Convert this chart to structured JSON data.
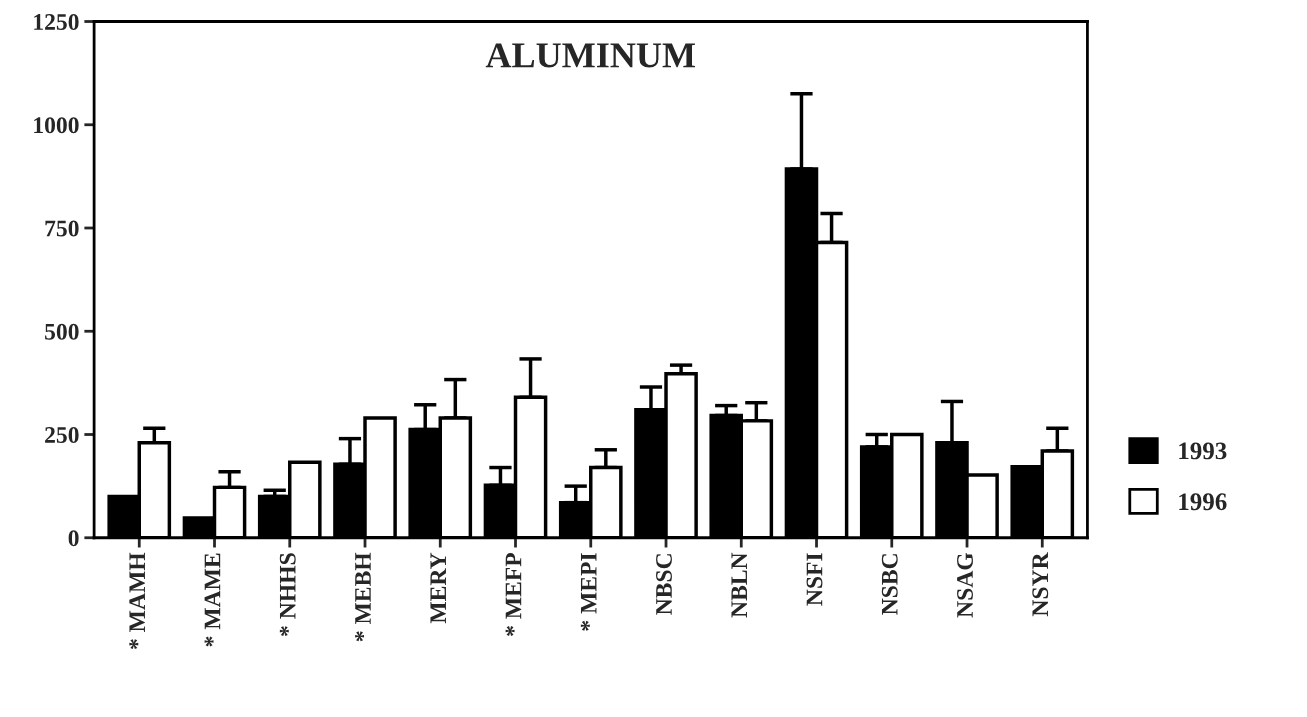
{
  "chart_data": {
    "type": "bar",
    "title": "ALUMINUM",
    "categories": [
      "* MAMH",
      "* MAME",
      "* NHHS",
      "* MEBH",
      "MERY",
      "* MEFP",
      "* MEPI",
      "NBSC",
      "NBLN",
      "NSFI",
      "NSBC",
      "NSAG",
      "NSYR"
    ],
    "series": [
      {
        "name": "1993",
        "color": "#000000",
        "values": [
          100,
          48,
          100,
          178,
          262,
          127,
          85,
          310,
          296,
          893,
          220,
          230,
          172
        ],
        "errors": [
          null,
          null,
          15,
          62,
          60,
          43,
          40,
          55,
          24,
          182,
          30,
          100,
          null
        ]
      },
      {
        "name": "1996",
        "color": "#ffffff",
        "values": [
          230,
          122,
          183,
          290,
          290,
          340,
          170,
          397,
          283,
          715,
          250,
          152,
          210
        ],
        "errors": [
          35,
          38,
          null,
          null,
          93,
          93,
          43,
          21,
          44,
          70,
          null,
          null,
          55
        ]
      }
    ],
    "ylim": [
      0,
      1250
    ],
    "yticks": [
      0,
      250,
      500,
      750,
      1000,
      1250
    ],
    "legend": "right",
    "grid": false
  }
}
